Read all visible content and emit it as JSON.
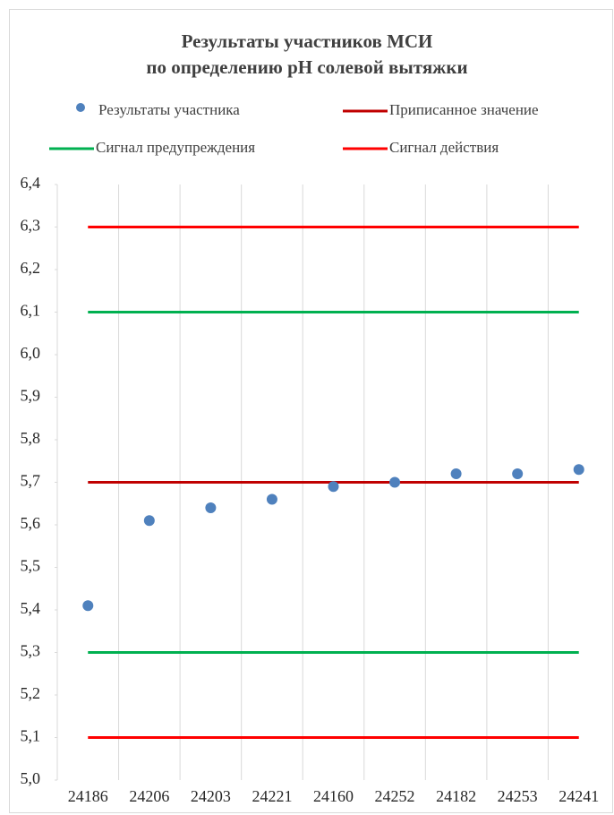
{
  "chart_data": {
    "type": "line",
    "title": [
      "Результаты участников МСИ",
      "по определению рН солевой вытяжки"
    ],
    "categories": [
      "24186",
      "24206",
      "24203",
      "24221",
      "24160",
      "24252",
      "24182",
      "24253",
      "24241"
    ],
    "series": [
      {
        "name": "Результаты участника",
        "color": "#4f81bd",
        "mode": "markers",
        "values": [
          5.41,
          5.61,
          5.64,
          5.66,
          5.69,
          5.7,
          5.72,
          5.72,
          5.73
        ]
      },
      {
        "name": "Приписанное значение",
        "color": "#c00000",
        "mode": "lines",
        "values": [
          5.7,
          5.7,
          5.7,
          5.7,
          5.7,
          5.7,
          5.7,
          5.7,
          5.7
        ]
      },
      {
        "name": "Сигнал предупреждения",
        "color": "#00b050",
        "mode": "lines",
        "values": [
          6.1,
          6.1,
          6.1,
          6.1,
          6.1,
          6.1,
          6.1,
          6.1,
          6.1
        ]
      },
      {
        "name": "Сигнал предупреждения",
        "color": "#00b050",
        "mode": "lines",
        "values": [
          5.3,
          5.3,
          5.3,
          5.3,
          5.3,
          5.3,
          5.3,
          5.3,
          5.3
        ]
      },
      {
        "name": "Сигнал действия",
        "color": "#ff0000",
        "mode": "lines",
        "values": [
          6.3,
          6.3,
          6.3,
          6.3,
          6.3,
          6.3,
          6.3,
          6.3,
          6.3
        ]
      },
      {
        "name": "Сигнал действия",
        "color": "#ff0000",
        "mode": "lines",
        "values": [
          5.1,
          5.1,
          5.1,
          5.1,
          5.1,
          5.1,
          5.1,
          5.1,
          5.1
        ]
      }
    ],
    "ylim": [
      5.0,
      6.4
    ],
    "yticks": [
      {
        "value": 5.0,
        "label": "5,0"
      },
      {
        "value": 5.1,
        "label": "5,1"
      },
      {
        "value": 5.2,
        "label": "5,2"
      },
      {
        "value": 5.3,
        "label": "5,3"
      },
      {
        "value": 5.4,
        "label": "5,4"
      },
      {
        "value": 5.5,
        "label": "5,5"
      },
      {
        "value": 5.6,
        "label": "5,6"
      },
      {
        "value": 5.7,
        "label": "5,7"
      },
      {
        "value": 5.8,
        "label": "5,8"
      },
      {
        "value": 5.9,
        "label": "5,9"
      },
      {
        "value": 6.0,
        "label": "6,0"
      },
      {
        "value": 6.1,
        "label": "6,1"
      },
      {
        "value": 6.2,
        "label": "6,2"
      },
      {
        "value": 6.3,
        "label": "6,3"
      },
      {
        "value": 6.4,
        "label": "6,4"
      }
    ],
    "legend": "top"
  }
}
